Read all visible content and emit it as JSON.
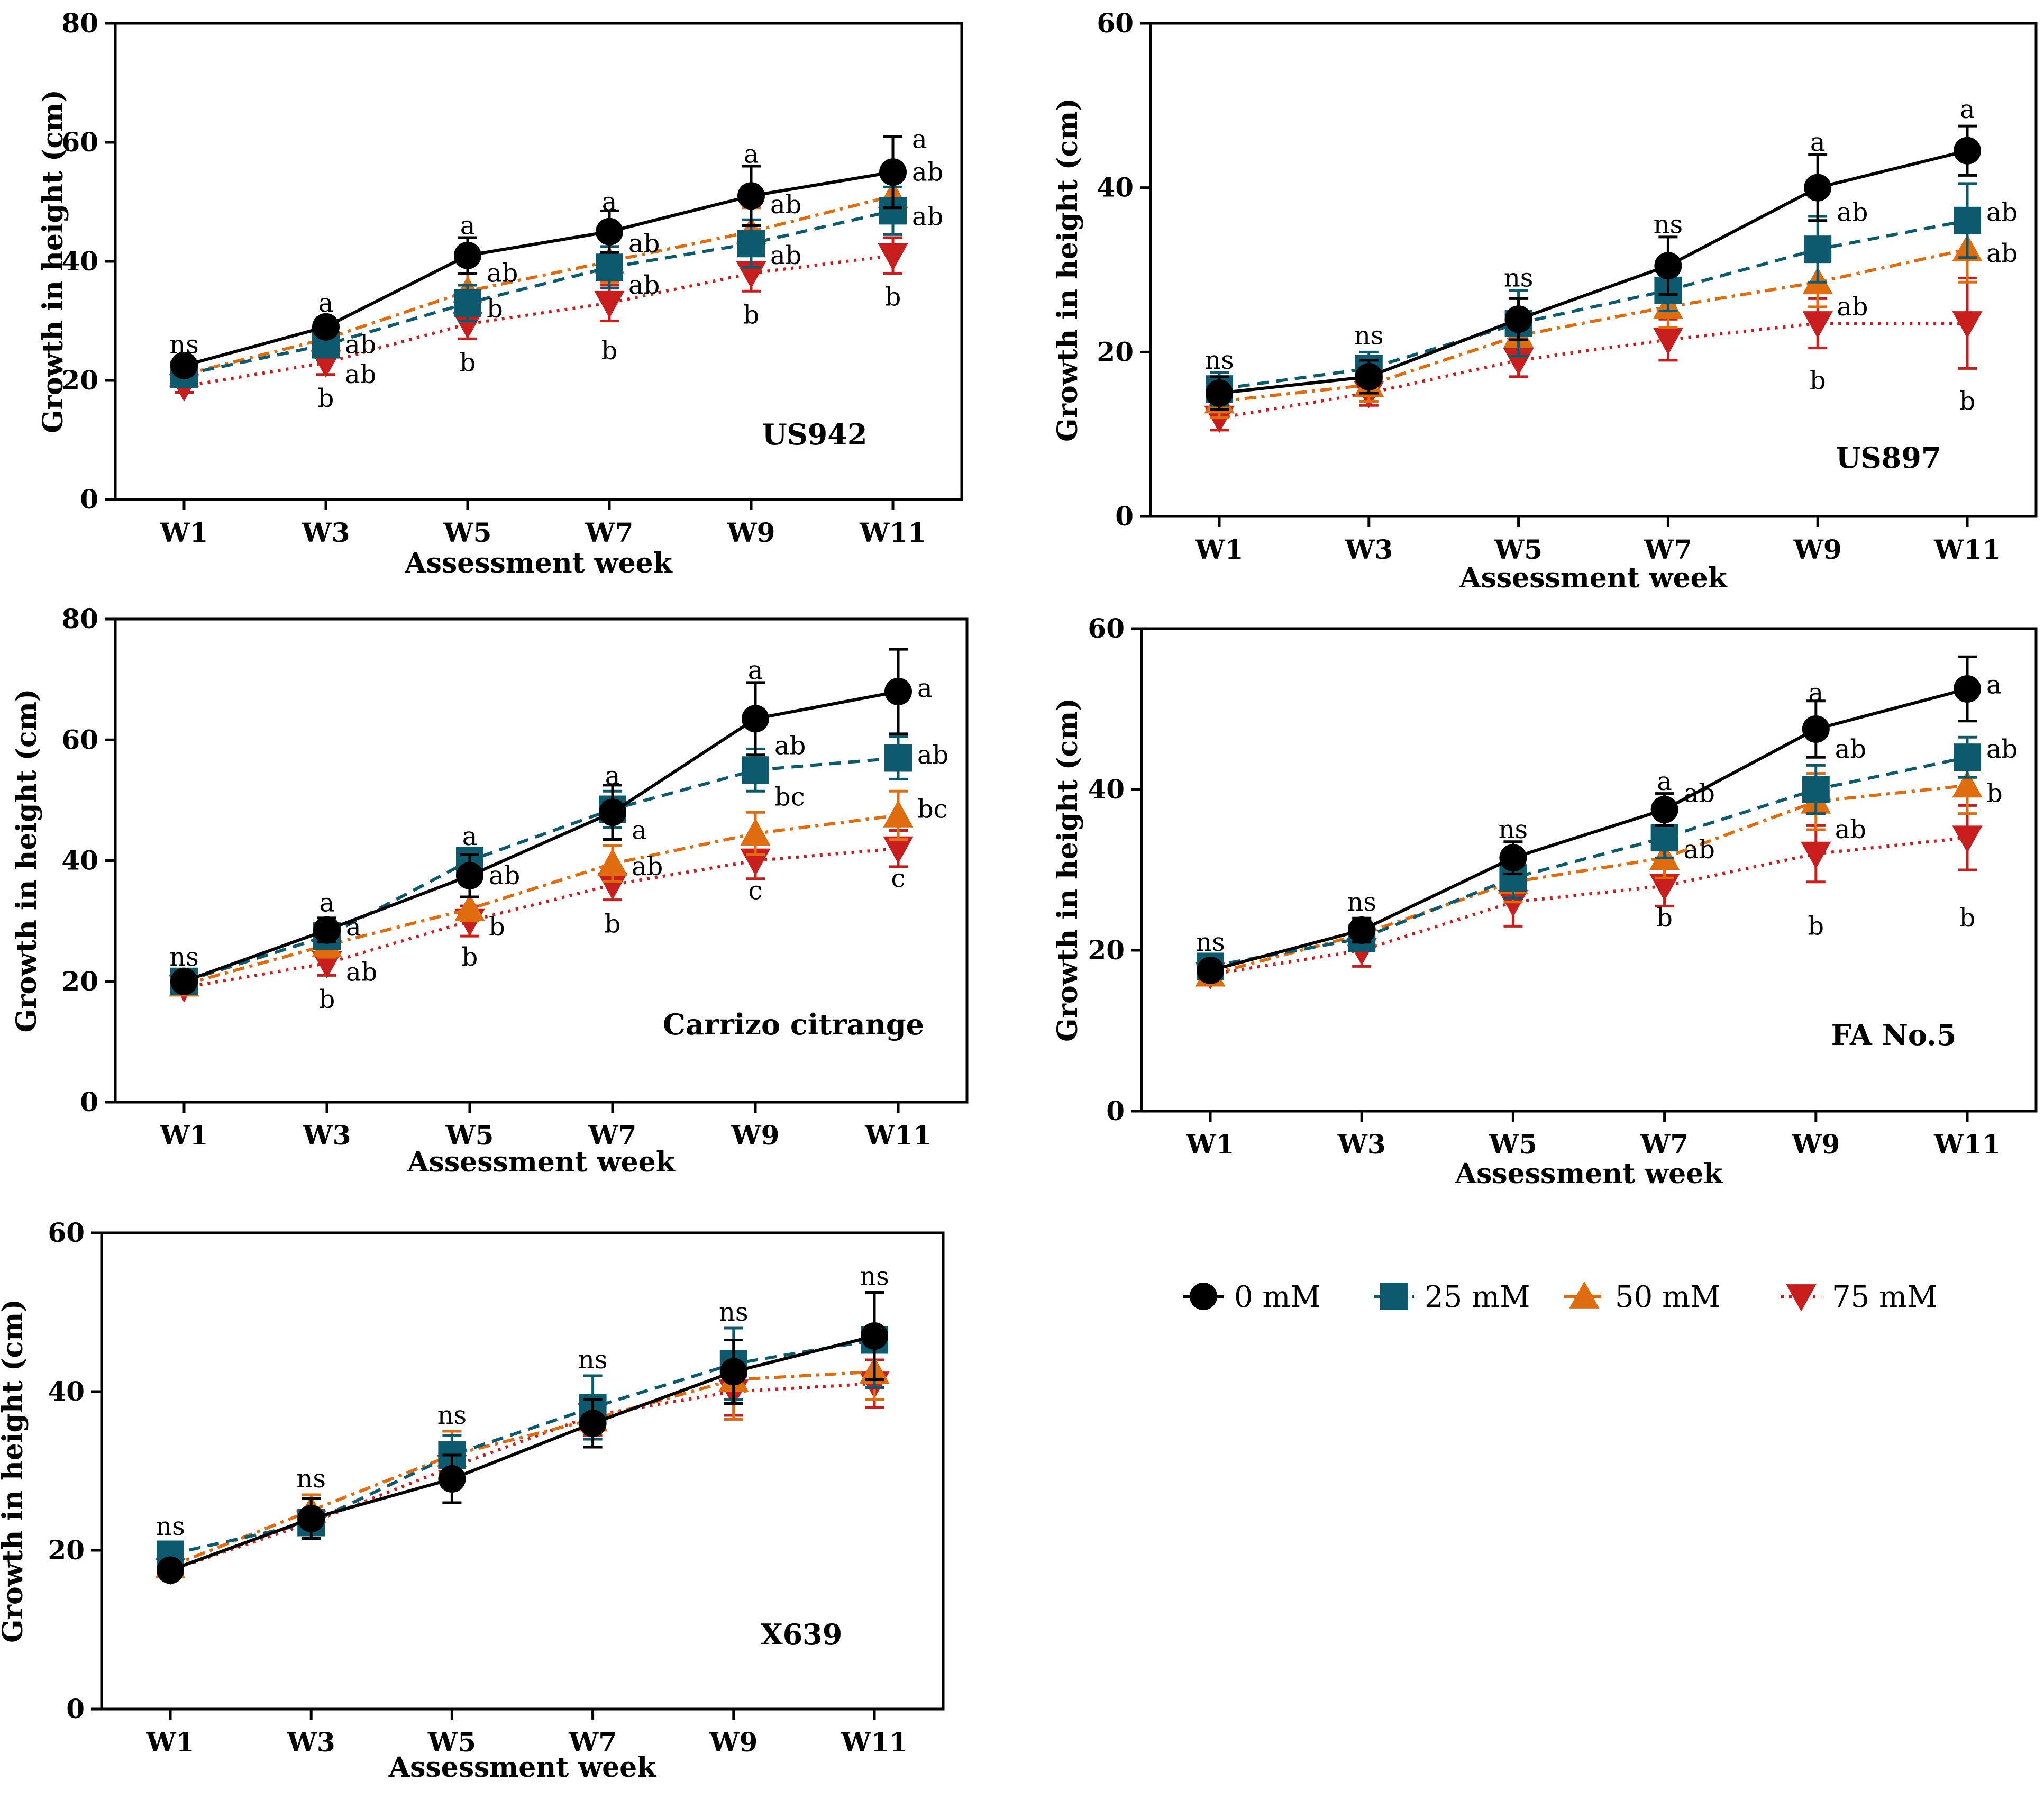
{
  "figure": {
    "legend": [
      {
        "label": "0 mM",
        "color": "#000000",
        "marker": "circle",
        "dash": "solid"
      },
      {
        "label": "25 mM",
        "color": "#0d5a6e",
        "marker": "square",
        "dash": "dashed"
      },
      {
        "label": "50 mM",
        "color": "#e06c10",
        "marker": "triangle-up",
        "dash": "dashdot"
      },
      {
        "label": "75 mM",
        "color": "#c81e1e",
        "marker": "triangle-down",
        "dash": "dotted"
      }
    ]
  },
  "chart_data": [
    {
      "type": "line",
      "title": "US942",
      "xlabel": "Assessment week",
      "ylabel": "Growth in height (cm)",
      "categories": [
        "W1",
        "W3",
        "W5",
        "W7",
        "W9",
        "W11"
      ],
      "ylim": [
        0,
        80
      ],
      "yticks": [
        0,
        20,
        40,
        60,
        80
      ],
      "series": [
        {
          "name": "0 mM",
          "values": [
            22.5,
            29,
            41,
            45,
            51,
            55
          ],
          "errors": [
            1.5,
            1.5,
            3,
            3.5,
            5,
            6
          ]
        },
        {
          "name": "25 mM",
          "values": [
            21,
            26,
            33,
            39,
            43,
            48.5
          ],
          "errors": [
            1.5,
            2,
            3,
            3.5,
            4,
            4
          ]
        },
        {
          "name": "50 mM",
          "values": [
            21,
            27,
            35,
            40,
            45,
            51
          ],
          "errors": [
            1.5,
            2,
            3,
            3.5,
            4,
            4
          ]
        },
        {
          "name": "75 mM",
          "values": [
            19,
            23,
            29.5,
            33,
            38,
            41
          ],
          "errors": [
            1,
            2,
            2.5,
            3,
            3,
            3
          ]
        }
      ],
      "annotations": [
        {
          "x": "W1",
          "y": 26,
          "text": "ns",
          "pos": "top"
        },
        {
          "x": "W3",
          "y": 33,
          "text": "a",
          "pos": "top"
        },
        {
          "x": "W3",
          "y": 26,
          "text": "ab",
          "pos": "right"
        },
        {
          "x": "W3",
          "y": 21,
          "text": "ab",
          "pos": "right"
        },
        {
          "x": "W3",
          "y": 17,
          "text": "b",
          "pos": "top"
        },
        {
          "x": "W5",
          "y": 46,
          "text": "a",
          "pos": "top"
        },
        {
          "x": "W5",
          "y": 38,
          "text": "ab",
          "pos": "right"
        },
        {
          "x": "W5",
          "y": 32,
          "text": "b",
          "pos": "right"
        },
        {
          "x": "W5",
          "y": 23,
          "text": "b",
          "pos": "top"
        },
        {
          "x": "W7",
          "y": 50,
          "text": "a",
          "pos": "top"
        },
        {
          "x": "W7",
          "y": 43,
          "text": "ab",
          "pos": "right"
        },
        {
          "x": "W7",
          "y": 36,
          "text": "ab",
          "pos": "right"
        },
        {
          "x": "W7",
          "y": 25,
          "text": "b",
          "pos": "top"
        },
        {
          "x": "W9",
          "y": 58,
          "text": "a",
          "pos": "top"
        },
        {
          "x": "W9",
          "y": 49.5,
          "text": "ab",
          "pos": "right"
        },
        {
          "x": "W9",
          "y": 41,
          "text": "ab",
          "pos": "right"
        },
        {
          "x": "W9",
          "y": 31,
          "text": "b",
          "pos": "top"
        },
        {
          "x": "W11",
          "y": 60.5,
          "text": "a",
          "pos": "right"
        },
        {
          "x": "W11",
          "y": 55,
          "text": "ab",
          "pos": "right"
        },
        {
          "x": "W11",
          "y": 47.5,
          "text": "ab",
          "pos": "right"
        },
        {
          "x": "W11",
          "y": 34,
          "text": "b",
          "pos": "top"
        }
      ]
    },
    {
      "type": "line",
      "title": "US897",
      "xlabel": "Assessment week",
      "ylabel": "Growth in height (cm)",
      "categories": [
        "W1",
        "W3",
        "W5",
        "W7",
        "W9",
        "W11"
      ],
      "ylim": [
        0,
        60
      ],
      "yticks": [
        0,
        20,
        40,
        60
      ],
      "series": [
        {
          "name": "0 mM",
          "values": [
            15,
            17,
            24,
            30.5,
            40,
            44.5
          ],
          "errors": [
            2,
            2,
            2.5,
            3.5,
            4,
            3
          ]
        },
        {
          "name": "25 mM",
          "values": [
            15.5,
            18,
            23.5,
            27.5,
            32.5,
            36
          ],
          "errors": [
            2,
            2,
            4,
            2.5,
            4,
            4.5
          ]
        },
        {
          "name": "50 mM",
          "values": [
            14,
            16,
            22,
            25.5,
            28.5,
            32.5
          ],
          "errors": [
            2,
            2,
            2.5,
            2.5,
            3,
            4
          ]
        },
        {
          "name": "75 mM",
          "values": [
            12,
            15,
            19,
            21.5,
            23.5,
            23.5
          ],
          "errors": [
            1.5,
            1.5,
            2,
            2.5,
            3,
            5.5
          ]
        }
      ],
      "annotations": [
        {
          "x": "W1",
          "y": 19,
          "text": "ns",
          "pos": "top"
        },
        {
          "x": "W3",
          "y": 22,
          "text": "ns",
          "pos": "top"
        },
        {
          "x": "W5",
          "y": 29,
          "text": "ns",
          "pos": "top"
        },
        {
          "x": "W7",
          "y": 35.5,
          "text": "ns",
          "pos": "top"
        },
        {
          "x": "W9",
          "y": 45.5,
          "text": "a",
          "pos": "top"
        },
        {
          "x": "W9",
          "y": 37,
          "text": "ab",
          "pos": "right"
        },
        {
          "x": "W9",
          "y": 25.5,
          "text": "ab",
          "pos": "right"
        },
        {
          "x": "W9",
          "y": 16.5,
          "text": "b",
          "pos": "top"
        },
        {
          "x": "W11",
          "y": 49.5,
          "text": "a",
          "pos": "top"
        },
        {
          "x": "W11",
          "y": 37,
          "text": "ab",
          "pos": "right"
        },
        {
          "x": "W11",
          "y": 32,
          "text": "ab",
          "pos": "right"
        },
        {
          "x": "W11",
          "y": 14,
          "text": "b",
          "pos": "top"
        }
      ]
    },
    {
      "type": "line",
      "title": "Carrizo citrange",
      "xlabel": "Assessment week",
      "ylabel": "Growth in height (cm)",
      "categories": [
        "W1",
        "W3",
        "W5",
        "W7",
        "W9",
        "W11"
      ],
      "ylim": [
        0,
        80
      ],
      "yticks": [
        0,
        20,
        40,
        60,
        80
      ],
      "series": [
        {
          "name": "0 mM",
          "values": [
            20,
            28.5,
            37.5,
            48,
            63.5,
            68
          ],
          "errors": [
            1,
            2,
            3.5,
            4.5,
            6,
            7
          ]
        },
        {
          "name": "25 mM",
          "values": [
            20,
            27.5,
            40,
            48.5,
            55,
            57
          ],
          "errors": [
            1,
            2,
            2,
            3,
            3.5,
            3.5
          ]
        },
        {
          "name": "50 mM",
          "values": [
            19.5,
            26,
            32,
            39.5,
            44.5,
            47.5
          ],
          "errors": [
            1,
            2,
            2,
            3,
            3.5,
            4
          ]
        },
        {
          "name": "75 mM",
          "values": [
            19,
            23,
            30,
            36,
            40,
            42
          ],
          "errors": [
            1,
            2,
            2.5,
            2.5,
            3,
            3
          ]
        }
      ],
      "annotations": [
        {
          "x": "W1",
          "y": 24,
          "text": "ns",
          "pos": "top"
        },
        {
          "x": "W3",
          "y": 33,
          "text": "a",
          "pos": "top"
        },
        {
          "x": "W3",
          "y": 29,
          "text": "a",
          "pos": "right"
        },
        {
          "x": "W3",
          "y": 21.5,
          "text": "ab",
          "pos": "right"
        },
        {
          "x": "W3",
          "y": 17,
          "text": "b",
          "pos": "top"
        },
        {
          "x": "W5",
          "y": 44,
          "text": "a",
          "pos": "top"
        },
        {
          "x": "W5",
          "y": 37.5,
          "text": "ab",
          "pos": "right"
        },
        {
          "x": "W5",
          "y": 29,
          "text": "b",
          "pos": "right"
        },
        {
          "x": "W5",
          "y": 24,
          "text": "b",
          "pos": "top"
        },
        {
          "x": "W7",
          "y": 54,
          "text": "a",
          "pos": "top"
        },
        {
          "x": "W7",
          "y": 45,
          "text": "a",
          "pos": "right"
        },
        {
          "x": "W7",
          "y": 39,
          "text": "ab",
          "pos": "right"
        },
        {
          "x": "W7",
          "y": 29.5,
          "text": "b",
          "pos": "top"
        },
        {
          "x": "W9",
          "y": 71.5,
          "text": "a",
          "pos": "top"
        },
        {
          "x": "W9",
          "y": 59,
          "text": "ab",
          "pos": "right"
        },
        {
          "x": "W9",
          "y": 50.5,
          "text": "bc",
          "pos": "right"
        },
        {
          "x": "W9",
          "y": 35,
          "text": "c",
          "pos": "top"
        },
        {
          "x": "W11",
          "y": 68.5,
          "text": "a",
          "pos": "right"
        },
        {
          "x": "W11",
          "y": 57.5,
          "text": "ab",
          "pos": "right"
        },
        {
          "x": "W11",
          "y": 48.5,
          "text": "bc",
          "pos": "right"
        },
        {
          "x": "W11",
          "y": 37,
          "text": "c",
          "pos": "top"
        }
      ]
    },
    {
      "type": "line",
      "title": "FA No.5",
      "xlabel": "Assessment week",
      "ylabel": "Growth in height (cm)",
      "categories": [
        "W1",
        "W3",
        "W5",
        "W7",
        "W9",
        "W11"
      ],
      "ylim": [
        0,
        60
      ],
      "yticks": [
        0,
        20,
        40,
        60
      ],
      "series": [
        {
          "name": "0 mM",
          "values": [
            17.5,
            22.5,
            31.5,
            37.5,
            47.5,
            52.5
          ],
          "errors": [
            1,
            1.5,
            2,
            2,
            3.5,
            4
          ]
        },
        {
          "name": "25 mM",
          "values": [
            18,
            21.5,
            29,
            34,
            40,
            44
          ],
          "errors": [
            1,
            1.5,
            2.5,
            2.5,
            3,
            2.5
          ]
        },
        {
          "name": "50 mM",
          "values": [
            17,
            22,
            28.5,
            31.5,
            38.5,
            40.5
          ],
          "errors": [
            1,
            1.5,
            2.5,
            2.5,
            3.5,
            3.5
          ]
        },
        {
          "name": "75 mM",
          "values": [
            17,
            20,
            26,
            28,
            32,
            34
          ],
          "errors": [
            1,
            2,
            3,
            2.5,
            3.5,
            4
          ]
        }
      ],
      "annotations": [
        {
          "x": "W1",
          "y": 21,
          "text": "ns",
          "pos": "top"
        },
        {
          "x": "W3",
          "y": 26,
          "text": "ns",
          "pos": "top"
        },
        {
          "x": "W5",
          "y": 35,
          "text": "ns",
          "pos": "top"
        },
        {
          "x": "W7",
          "y": 41,
          "text": "a",
          "pos": "top"
        },
        {
          "x": "W7",
          "y": 39.5,
          "text": "ab",
          "pos": "right"
        },
        {
          "x": "W7",
          "y": 32.5,
          "text": "ab",
          "pos": "right"
        },
        {
          "x": "W7",
          "y": 24,
          "text": "b",
          "pos": "top"
        },
        {
          "x": "W9",
          "y": 52,
          "text": "a",
          "pos": "top"
        },
        {
          "x": "W9",
          "y": 45,
          "text": "ab",
          "pos": "right"
        },
        {
          "x": "W9",
          "y": 35,
          "text": "ab",
          "pos": "right"
        },
        {
          "x": "W9",
          "y": 23,
          "text": "b",
          "pos": "top"
        },
        {
          "x": "W11",
          "y": 53,
          "text": "a",
          "pos": "right"
        },
        {
          "x": "W11",
          "y": 45,
          "text": "ab",
          "pos": "right"
        },
        {
          "x": "W11",
          "y": 39.5,
          "text": "b",
          "pos": "right"
        },
        {
          "x": "W11",
          "y": 24,
          "text": "b",
          "pos": "top"
        }
      ]
    },
    {
      "type": "line",
      "title": "X639",
      "xlabel": "Assessment week",
      "ylabel": "Growth in height (cm)",
      "categories": [
        "W1",
        "W3",
        "W5",
        "W7",
        "W9",
        "W11"
      ],
      "ylim": [
        0,
        60
      ],
      "yticks": [
        0,
        20,
        40,
        60
      ],
      "series": [
        {
          "name": "0 mM",
          "values": [
            17.5,
            24,
            29,
            36,
            42.5,
            47
          ],
          "errors": [
            0.8,
            2.5,
            3,
            3,
            4,
            5.5
          ]
        },
        {
          "name": "25 mM",
          "values": [
            19.5,
            23.5,
            32,
            38,
            43.5,
            46.5
          ],
          "errors": [
            0.8,
            1.5,
            2.5,
            4,
            4.5,
            6
          ]
        },
        {
          "name": "50 mM",
          "values": [
            18,
            25,
            32,
            36.5,
            41.5,
            42.5
          ],
          "errors": [
            0.8,
            2,
            3,
            2.5,
            5,
            3.5
          ]
        },
        {
          "name": "75 mM",
          "values": [
            17.5,
            23.5,
            30.5,
            37,
            40,
            41
          ],
          "errors": [
            0.8,
            1.5,
            2.5,
            2.5,
            3,
            3
          ]
        }
      ],
      "annotations": [
        {
          "x": "W1",
          "y": 23,
          "text": "ns",
          "pos": "top"
        },
        {
          "x": "W3",
          "y": 29,
          "text": "ns",
          "pos": "top"
        },
        {
          "x": "W5",
          "y": 37,
          "text": "ns",
          "pos": "top"
        },
        {
          "x": "W7",
          "y": 44,
          "text": "ns",
          "pos": "top"
        },
        {
          "x": "W9",
          "y": 50,
          "text": "ns",
          "pos": "top"
        },
        {
          "x": "W11",
          "y": 54.5,
          "text": "ns",
          "pos": "top"
        }
      ]
    }
  ]
}
